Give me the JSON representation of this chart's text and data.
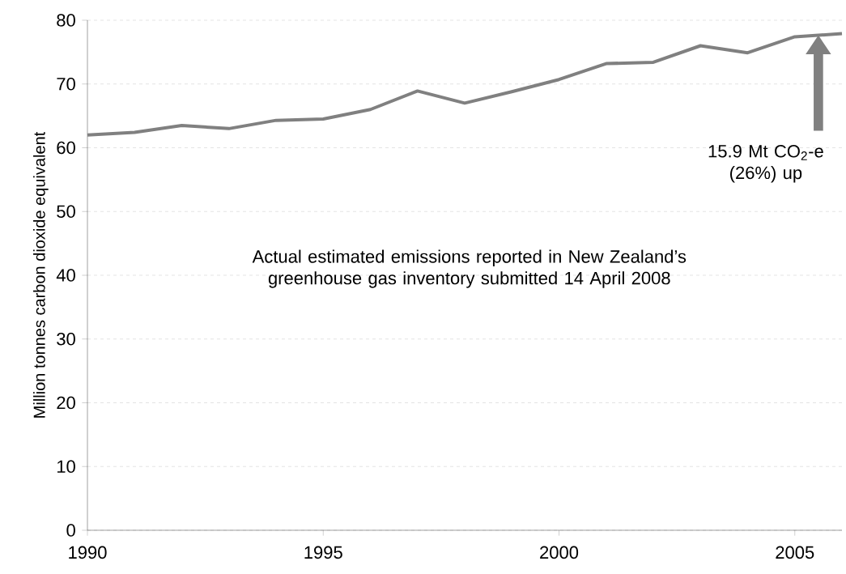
{
  "chart_data": {
    "type": "line",
    "ylabel": "Million tonnes carbon dioxide equivalent",
    "x": [
      1990,
      1991,
      1992,
      1993,
      1994,
      1995,
      1996,
      1997,
      1998,
      1999,
      2000,
      2001,
      2002,
      2003,
      2004,
      2005,
      2006
    ],
    "series": [
      {
        "color": "#808080",
        "values": [
          62.0,
          62.4,
          63.5,
          63.0,
          64.3,
          64.5,
          66.0,
          68.9,
          67.0,
          68.8,
          70.7,
          73.2,
          73.4,
          76.0,
          74.9,
          77.4,
          77.9
        ]
      }
    ],
    "xlim": [
      1990,
      2006
    ],
    "xticks": [
      1990,
      1995,
      2000,
      2005
    ],
    "ylim": [
      0,
      80
    ],
    "yticks": [
      0,
      10,
      20,
      30,
      40,
      50,
      60,
      70,
      80
    ],
    "grid": "y",
    "line_style": "solid",
    "marker": "none",
    "annotations": [
      "Actual estimated emissions reported in New Zealand’s greenhouse gas inventory submitted 14 April 2008",
      "15.9 Mt CO$_{2}$-e (26%) up"
    ]
  }
}
